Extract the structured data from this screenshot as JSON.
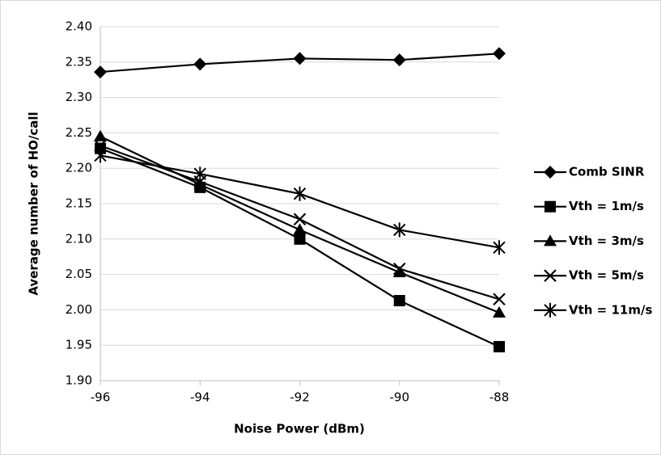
{
  "chart_data": {
    "type": "line",
    "x_label": "Noise Power (dBm)",
    "y_label": "Average number of HO/call",
    "x": [
      -96,
      -94,
      -92,
      -90,
      -88
    ],
    "xlim": [
      -96,
      -88
    ],
    "xticks": [
      -96,
      -94,
      -92,
      -90,
      -88
    ],
    "ylim": [
      1.9,
      2.4
    ],
    "yticks": [
      {
        "value": 1.9,
        "label": "1.90"
      },
      {
        "value": 1.95,
        "label": "1.95"
      },
      {
        "value": 2.0,
        "label": "2.00"
      },
      {
        "value": 2.05,
        "label": "2.05"
      },
      {
        "value": 2.1,
        "label": "2.10"
      },
      {
        "value": 2.15,
        "label": "2.15"
      },
      {
        "value": 2.2,
        "label": "2.20"
      },
      {
        "value": 2.25,
        "label": "2.25"
      },
      {
        "value": 2.3,
        "label": "2.30"
      },
      {
        "value": 2.35,
        "label": "2.35"
      },
      {
        "value": 2.4,
        "label": "2.40"
      }
    ],
    "grid": true,
    "legend": "right",
    "series": [
      {
        "name": "Comb SINR",
        "color": "#000000",
        "marker": "diamond",
        "values": [
          2.336,
          2.347,
          2.355,
          2.353,
          2.362
        ]
      },
      {
        "name": "Vth = 1m/s",
        "color": "#000000",
        "marker": "square",
        "values": [
          2.228,
          2.173,
          2.1,
          2.013,
          1.948
        ]
      },
      {
        "name": "Vth = 3m/s",
        "color": "#000000",
        "marker": "triangle",
        "values": [
          2.245,
          2.177,
          2.113,
          2.053,
          1.996
        ]
      },
      {
        "name": "Vth = 5m/s",
        "color": "#000000",
        "marker": "x",
        "values": [
          2.232,
          2.181,
          2.128,
          2.058,
          2.015
        ]
      },
      {
        "name": "Vth = 11m/s",
        "color": "#000000",
        "marker": "star",
        "values": [
          2.218,
          2.192,
          2.164,
          2.113,
          2.088
        ]
      }
    ]
  }
}
